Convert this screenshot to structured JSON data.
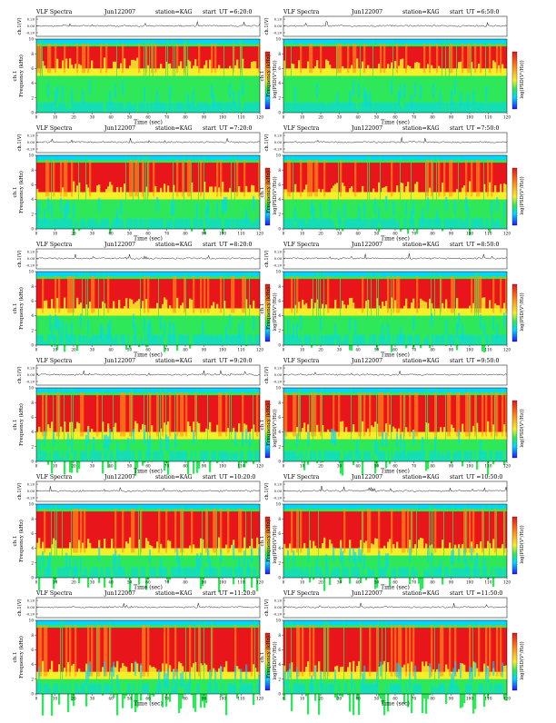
{
  "page": {
    "title_prefix": "VLF Spectra",
    "channel_axis_label": "ch.1(V)",
    "freq_axis_label": "Frequency (kHz)",
    "spec_channel_label": "ch.1",
    "time_axis_label": "Time (sec)",
    "colorbar_label": "log(PSD(V²/Hz))"
  },
  "colors": {
    "spectrum_low": "#1fa3ff",
    "spectrum_cyan": "#00d6ff",
    "spectrum_green": "#2fe85a",
    "spectrum_yellow": "#f5ef2a",
    "spectrum_orange": "#ff9a1a",
    "spectrum_red": "#e8161a",
    "colorbar_top": "#e8161a",
    "colorbar_bottom": "#1a1aff"
  },
  "chart_data": [
    {
      "type": "heatmap",
      "title": "VLF Spectra",
      "date": "Jun122007",
      "station": "station=KAG",
      "start": "start",
      "ut_label": "UT",
      "ut": "=6:20:0",
      "x_ticks": [
        "0",
        "10",
        "20",
        "30",
        "40",
        "50",
        "60",
        "70",
        "80",
        "90",
        "100",
        "110",
        "120"
      ],
      "y_ticks": [
        "0",
        "2",
        "4",
        "6",
        "8",
        "10"
      ],
      "ch_ticks": [
        "0.20",
        "0.00",
        "-0.20"
      ],
      "xlim": [
        0,
        120
      ],
      "ylim": [
        0,
        10
      ],
      "dominant_band_khz": [
        6,
        9
      ]
    },
    {
      "type": "heatmap",
      "title": "VLF Spectra",
      "date": "Jun122007",
      "station": "station=KAG",
      "start": "start",
      "ut_label": "UT",
      "ut": "=6:50:0",
      "x_ticks": [
        "0",
        "10",
        "20",
        "30",
        "40",
        "50",
        "60",
        "70",
        "80",
        "90",
        "100",
        "110",
        "120"
      ],
      "y_ticks": [
        "0",
        "2",
        "4",
        "6",
        "8",
        "10"
      ],
      "ch_ticks": [
        "0.20",
        "0.00",
        "-0.20"
      ],
      "xlim": [
        0,
        120
      ],
      "ylim": [
        0,
        10
      ],
      "dominant_band_khz": [
        6,
        9
      ]
    },
    {
      "type": "heatmap",
      "title": "VLF Spectra",
      "date": "Jun122007",
      "station": "station=KAG",
      "start": "start",
      "ut_label": "UT",
      "ut": "=7:20:0",
      "x_ticks": [
        "0",
        "10",
        "20",
        "30",
        "40",
        "50",
        "60",
        "70",
        "80",
        "90",
        "100",
        "110",
        "120"
      ],
      "y_ticks": [
        "0",
        "2",
        "4",
        "6",
        "8",
        "10"
      ],
      "ch_ticks": [
        "0.20",
        "0.00",
        "-0.20"
      ],
      "xlim": [
        0,
        120
      ],
      "ylim": [
        0,
        10
      ],
      "dominant_band_khz": [
        5,
        9
      ]
    },
    {
      "type": "heatmap",
      "title": "VLF Spectra",
      "date": "Jun122007",
      "station": "station=KAG",
      "start": "start",
      "ut_label": "UT",
      "ut": "=7:50:0",
      "x_ticks": [
        "0",
        "10",
        "20",
        "30",
        "40",
        "50",
        "60",
        "70",
        "80",
        "90",
        "100",
        "110",
        "120"
      ],
      "y_ticks": [
        "0",
        "2",
        "4",
        "6",
        "8",
        "10"
      ],
      "ch_ticks": [
        "0.20",
        "0.00",
        "-0.20"
      ],
      "xlim": [
        0,
        120
      ],
      "ylim": [
        0,
        10
      ],
      "dominant_band_khz": [
        5,
        9
      ]
    },
    {
      "type": "heatmap",
      "title": "VLF Spectra",
      "date": "Jun122007",
      "station": "station=KAG",
      "start": "start",
      "ut_label": "UT",
      "ut": "=8:20:0",
      "x_ticks": [
        "0",
        "10",
        "20",
        "30",
        "40",
        "50",
        "60",
        "70",
        "80",
        "90",
        "100",
        "110",
        "120"
      ],
      "y_ticks": [
        "0",
        "2",
        "4",
        "6",
        "8",
        "10"
      ],
      "ch_ticks": [
        "0.20",
        "0.00",
        "-0.20"
      ],
      "xlim": [
        0,
        120
      ],
      "ylim": [
        0,
        10
      ],
      "dominant_band_khz": [
        5,
        9
      ]
    },
    {
      "type": "heatmap",
      "title": "VLF Spectra",
      "date": "Jun122007",
      "station": "station=KAG",
      "start": "start",
      "ut_label": "UT",
      "ut": "=8:50:0",
      "x_ticks": [
        "0",
        "10",
        "20",
        "30",
        "40",
        "50",
        "60",
        "70",
        "80",
        "90",
        "100",
        "110",
        "120"
      ],
      "y_ticks": [
        "0",
        "2",
        "4",
        "6",
        "8",
        "10"
      ],
      "ch_ticks": [
        "0.20",
        "0.00",
        "-0.20"
      ],
      "xlim": [
        0,
        120
      ],
      "ylim": [
        0,
        10
      ],
      "dominant_band_khz": [
        5,
        9
      ]
    },
    {
      "type": "heatmap",
      "title": "VLF Spectra",
      "date": "Jun122007",
      "station": "station=KAG",
      "start": "start",
      "ut_label": "UT",
      "ut": "=9:20:0",
      "x_ticks": [
        "0",
        "10",
        "20",
        "30",
        "40",
        "50",
        "60",
        "70",
        "80",
        "90",
        "100",
        "110",
        "120"
      ],
      "y_ticks": [
        "0",
        "2",
        "4",
        "6",
        "8",
        "10"
      ],
      "ch_ticks": [
        "0.20",
        "0.00",
        "-0.20"
      ],
      "xlim": [
        0,
        120
      ],
      "ylim": [
        0,
        10
      ],
      "dominant_band_khz": [
        4,
        9
      ]
    },
    {
      "type": "heatmap",
      "title": "VLF Spectra",
      "date": "Jun122007",
      "station": "station=KAG",
      "start": "start",
      "ut_label": "UT",
      "ut": "=9:50:0",
      "x_ticks": [
        "0",
        "10",
        "20",
        "30",
        "40",
        "50",
        "60",
        "70",
        "80",
        "90",
        "100",
        "110",
        "120"
      ],
      "y_ticks": [
        "0",
        "2",
        "4",
        "6",
        "8",
        "10"
      ],
      "ch_ticks": [
        "0.20",
        "0.00",
        "-0.20"
      ],
      "xlim": [
        0,
        120
      ],
      "ylim": [
        0,
        10
      ],
      "dominant_band_khz": [
        4,
        9
      ]
    },
    {
      "type": "heatmap",
      "title": "VLF Spectra",
      "date": "Jun122007",
      "station": "station=KAG",
      "start": "start",
      "ut_label": "UT",
      "ut": "=10:20:0",
      "x_ticks": [
        "0",
        "10",
        "20",
        "30",
        "40",
        "50",
        "60",
        "70",
        "80",
        "90",
        "100",
        "110",
        "120"
      ],
      "y_ticks": [
        "0",
        "2",
        "4",
        "6",
        "8",
        "10"
      ],
      "ch_ticks": [
        "0.20",
        "0.00",
        "-0.20"
      ],
      "xlim": [
        0,
        120
      ],
      "ylim": [
        0,
        10
      ],
      "dominant_band_khz": [
        4,
        9
      ]
    },
    {
      "type": "heatmap",
      "title": "VLF Spectra",
      "date": "Jun122007",
      "station": "station=KAG",
      "start": "start",
      "ut_label": "UT",
      "ut": "=10:50:0",
      "x_ticks": [
        "0",
        "10",
        "20",
        "30",
        "40",
        "50",
        "60",
        "70",
        "80",
        "90",
        "100",
        "110",
        "120"
      ],
      "y_ticks": [
        "0",
        "2",
        "4",
        "6",
        "8",
        "10"
      ],
      "ch_ticks": [
        "0.20",
        "0.00",
        "-0.20"
      ],
      "xlim": [
        0,
        120
      ],
      "ylim": [
        0,
        10
      ],
      "dominant_band_khz": [
        4,
        9
      ]
    },
    {
      "type": "heatmap",
      "title": "VLF Spectra",
      "date": "Jun122007",
      "station": "station=KAG",
      "start": "start",
      "ut_label": "UT",
      "ut": "=11:20:0",
      "x_ticks": [
        "0",
        "10",
        "20",
        "30",
        "40",
        "50",
        "60",
        "70",
        "80",
        "90",
        "100",
        "110",
        "120"
      ],
      "y_ticks": [
        "0",
        "2",
        "4",
        "6",
        "8",
        "10"
      ],
      "ch_ticks": [
        "0.20",
        "0.00",
        "-0.20"
      ],
      "xlim": [
        0,
        120
      ],
      "ylim": [
        0,
        10
      ],
      "dominant_band_khz": [
        3,
        9
      ]
    },
    {
      "type": "heatmap",
      "title": "VLF Spectra",
      "date": "Jun122007",
      "station": "station=KAG",
      "start": "start",
      "ut_label": "UT",
      "ut": "=11:50:0",
      "x_ticks": [
        "0",
        "10",
        "20",
        "30",
        "40",
        "50",
        "60",
        "70",
        "80",
        "90",
        "100",
        "110",
        "120"
      ],
      "y_ticks": [
        "0",
        "2",
        "4",
        "6",
        "8",
        "10"
      ],
      "ch_ticks": [
        "0.20",
        "0.00",
        "-0.20"
      ],
      "xlim": [
        0,
        120
      ],
      "ylim": [
        0,
        10
      ],
      "dominant_band_khz": [
        3,
        9
      ]
    }
  ]
}
